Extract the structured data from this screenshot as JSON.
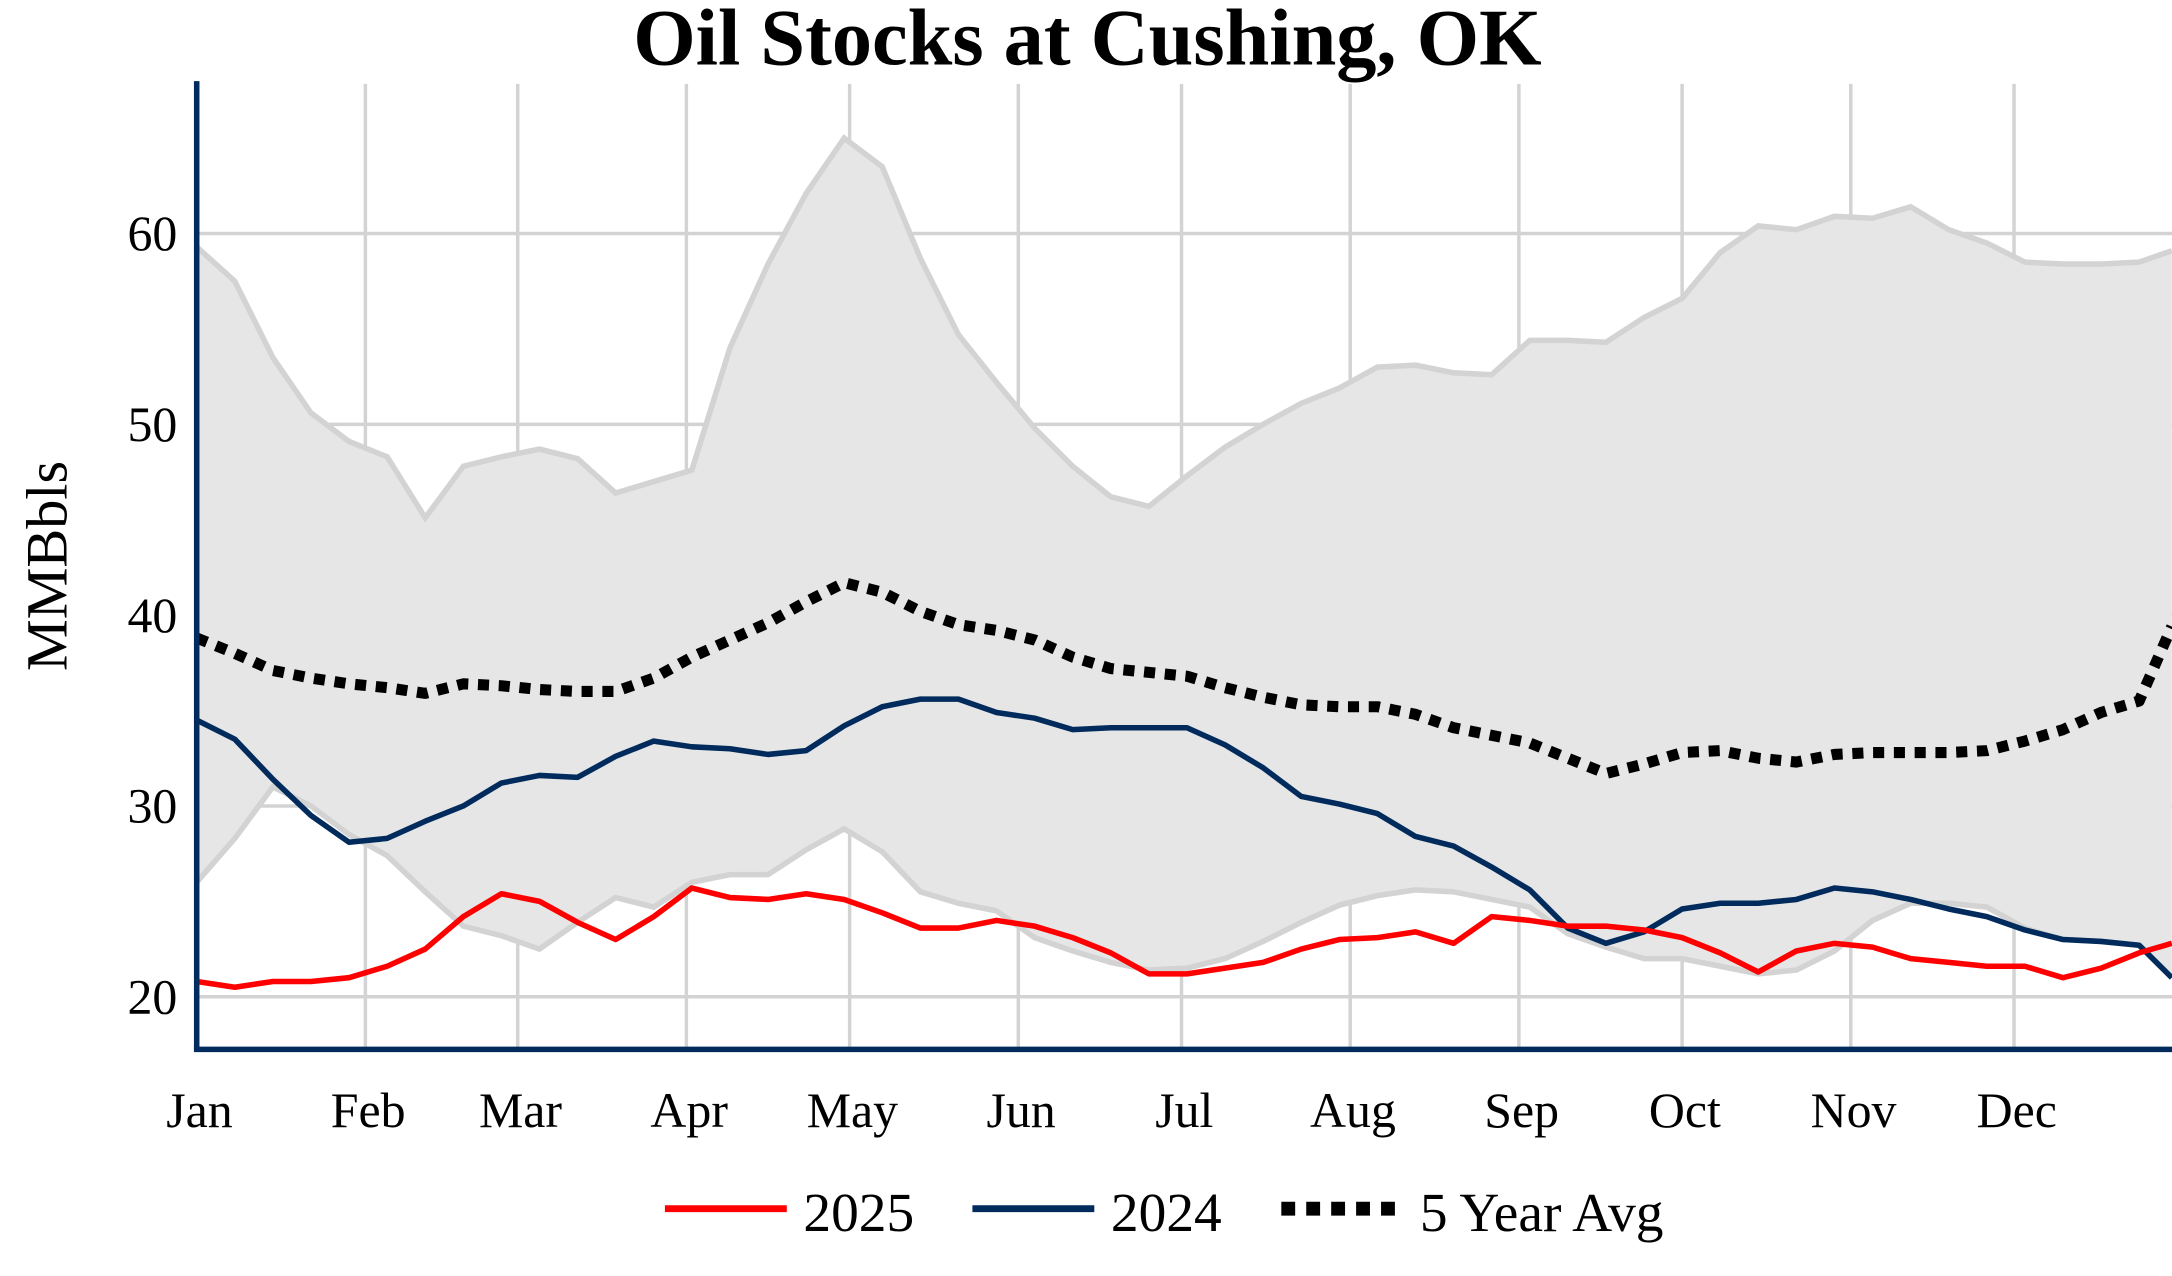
{
  "chart_data": {
    "type": "line",
    "title": "Oil Stocks at Cushing, OK",
    "xlabel": "",
    "ylabel": "MMBbls",
    "ylim": [
      17.3,
      68
    ],
    "yticks": [
      20,
      30,
      40,
      50,
      60
    ],
    "xtick_labels": [
      "Jan",
      "Feb",
      "Mar",
      "Apr",
      "May",
      "Jun",
      "Jul",
      "Aug",
      "Sep",
      "Oct",
      "Nov",
      "Dec"
    ],
    "grid": true,
    "legend_position": "bottom",
    "x": [
      "01-01",
      "01-08",
      "01-15",
      "01-22",
      "01-29",
      "02-05",
      "02-12",
      "02-19",
      "02-26",
      "03-05",
      "03-12",
      "03-19",
      "03-26",
      "04-02",
      "04-09",
      "04-16",
      "04-23",
      "04-30",
      "05-07",
      "05-14",
      "05-21",
      "05-28",
      "06-04",
      "06-11",
      "06-18",
      "06-25",
      "07-02",
      "07-09",
      "07-16",
      "07-23",
      "07-30",
      "08-06",
      "08-13",
      "08-20",
      "08-27",
      "09-03",
      "09-10",
      "09-17",
      "09-24",
      "10-01",
      "10-08",
      "10-15",
      "10-22",
      "10-29",
      "11-05",
      "11-12",
      "11-19",
      "11-26",
      "12-03",
      "12-10",
      "12-17",
      "12-24",
      "12-30"
    ],
    "range_band": {
      "color": "#e6e6e6",
      "edge_color": "#d3d3d3",
      "max": [
        59.3,
        57.5,
        53.5,
        50.6,
        49.1,
        48.3,
        45.1,
        47.8,
        48.3,
        48.7,
        48.2,
        46.4,
        47.0,
        47.6,
        54.0,
        58.4,
        62.1,
        65.0,
        63.5,
        58.7,
        54.7,
        52.2,
        49.8,
        47.8,
        46.2,
        45.7,
        47.3,
        48.8,
        50.0,
        51.1,
        51.9,
        53.0,
        53.1,
        52.7,
        52.6,
        54.4,
        54.4,
        54.3,
        55.6,
        56.6,
        59.0,
        60.4,
        60.2,
        60.9,
        60.8,
        61.4,
        60.2,
        59.5,
        58.5,
        58.4,
        58.4,
        58.5,
        59.1
      ],
      "min": [
        26.0,
        28.3,
        31.0,
        30.0,
        28.5,
        27.4,
        25.5,
        23.7,
        23.2,
        22.5,
        23.9,
        25.2,
        24.7,
        26.0,
        26.4,
        26.4,
        27.7,
        28.8,
        27.6,
        25.5,
        24.9,
        24.5,
        23.1,
        22.4,
        21.8,
        21.4,
        21.5,
        22.0,
        22.9,
        23.9,
        24.8,
        25.3,
        25.6,
        25.5,
        25.1,
        24.7,
        23.3,
        22.6,
        22.0,
        22.0,
        21.6,
        21.2,
        21.4,
        22.4,
        24.0,
        24.9,
        24.9,
        24.7,
        23.6,
        23.0,
        22.9,
        22.7,
        21.0
      ]
    },
    "series": [
      {
        "name": "2025",
        "color": "#ff0000",
        "style": "solid",
        "values": [
          20.8,
          20.5,
          20.8,
          20.8,
          21.0,
          21.6,
          22.5,
          24.2,
          25.4,
          25.0,
          23.9,
          23.0,
          24.2,
          25.7,
          25.2,
          25.1,
          25.4,
          25.1,
          24.4,
          23.6,
          23.6,
          24.0,
          23.7,
          23.1,
          22.3,
          21.2,
          21.2,
          21.5,
          21.8,
          22.5,
          23.0,
          23.1,
          23.4,
          22.8,
          24.2,
          24.0,
          23.7,
          23.7,
          23.5,
          23.1,
          22.3,
          21.3,
          22.4,
          22.8,
          22.6,
          22.0,
          21.8,
          21.6,
          21.6,
          21.0,
          21.5,
          22.3,
          22.8
        ]
      },
      {
        "name": "2024",
        "color": "#002b5c",
        "style": "solid",
        "values": [
          34.5,
          33.5,
          31.4,
          29.5,
          28.1,
          28.3,
          29.2,
          30.0,
          31.2,
          31.6,
          31.5,
          32.6,
          33.4,
          33.1,
          33.0,
          32.7,
          32.9,
          34.2,
          35.2,
          35.6,
          35.6,
          34.9,
          34.6,
          34.0,
          34.1,
          34.1,
          34.1,
          33.2,
          32.0,
          30.5,
          30.1,
          29.6,
          28.4,
          27.9,
          26.8,
          25.6,
          23.6,
          22.8,
          23.4,
          24.6,
          24.9,
          24.9,
          25.1,
          25.7,
          25.5,
          25.1,
          24.6,
          24.2,
          23.5,
          23.0,
          22.9,
          22.7,
          21.0
        ]
      },
      {
        "name": "5 Year Avg",
        "color": "#000000",
        "style": "dotted",
        "values": [
          38.8,
          38.0,
          37.1,
          36.7,
          36.4,
          36.2,
          35.9,
          36.4,
          36.3,
          36.1,
          36.0,
          36.0,
          36.7,
          37.8,
          38.7,
          39.6,
          40.7,
          41.7,
          41.2,
          40.2,
          39.5,
          39.2,
          38.7,
          37.8,
          37.2,
          37.0,
          36.8,
          36.2,
          35.7,
          35.3,
          35.2,
          35.2,
          34.8,
          34.1,
          33.7,
          33.3,
          32.5,
          31.7,
          32.2,
          32.8,
          32.9,
          32.5,
          32.3,
          32.7,
          32.8,
          32.8,
          32.8,
          32.9,
          33.4,
          34.0,
          34.9,
          35.5,
          39.4
        ]
      }
    ]
  }
}
